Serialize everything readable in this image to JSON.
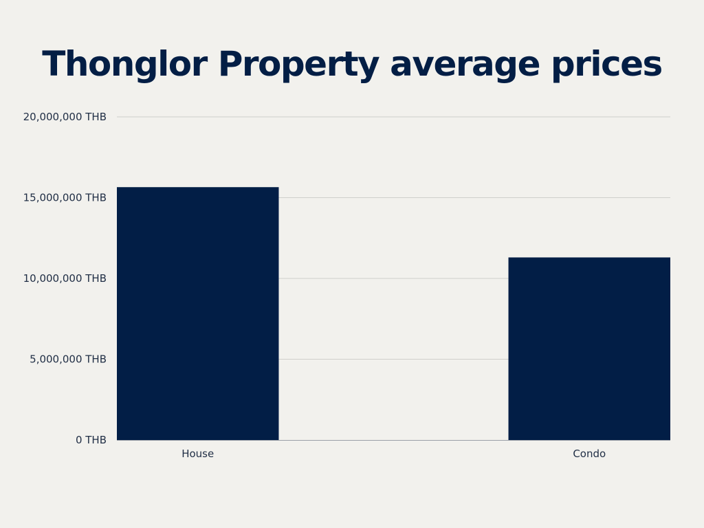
{
  "chart_data": {
    "type": "bar",
    "title": "Thonglor Property average prices",
    "categories": [
      "House",
      "Condo"
    ],
    "values": [
      15650000,
      11300000
    ],
    "ylim": [
      0,
      20000000
    ],
    "yticks": [
      0,
      5000000,
      10000000,
      15000000,
      20000000
    ],
    "ytick_labels": [
      "0 THB",
      "5,000,000 THB",
      "10,000,000 THB",
      "15,000,000 THB",
      "20,000,000 THB"
    ],
    "grid": true,
    "legend": "none",
    "xlabel": "",
    "ylabel": ""
  },
  "colors": {
    "bar": "#021e46",
    "grid": "#cfcfcb",
    "axis": "#9aa0a8",
    "background": "#f2f1ed",
    "title": "#031e45"
  }
}
